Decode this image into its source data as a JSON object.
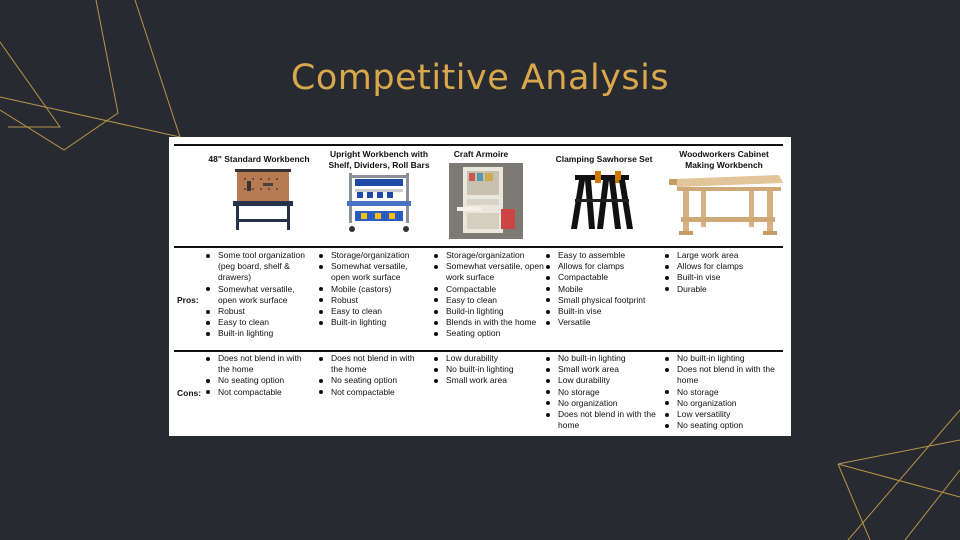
{
  "title": "Competitive Analysis",
  "colors": {
    "background": "#272a31",
    "accent": "#d9a84c"
  },
  "table": {
    "columns": [
      {
        "heading": "48\" Standard Workbench",
        "image": "standard-workbench-image"
      },
      {
        "heading": "Upright Workbench with\nShelf, Dividers, Roll Bars",
        "image": "upright-workbench-image"
      },
      {
        "heading": "Craft Armoire",
        "image": "craft-armoire-image"
      },
      {
        "heading": "Clamping Sawhorse Set",
        "image": "sawhorse-image"
      },
      {
        "heading": "Woodworkers Cabinet\nMaking Workbench",
        "image": "woodworkers-bench-image"
      }
    ],
    "pros_label": "Pros:",
    "cons_label": "Cons:",
    "pros": [
      [
        "Some tool organization (peg board, shelf & drawers)",
        "Somewhat versatile, open work surface",
        "Robust",
        "Easy to clean",
        "Built-in lighting"
      ],
      [
        "Storage/organization",
        "Somewhat versatile, open work surface",
        "Mobile (castors)",
        "Robust",
        "Easy to clean",
        "Built-in lighting"
      ],
      [
        "Storage/organization",
        "Somewhat versatile, open work surface",
        "Compactable",
        "Easy to clean",
        "Build-in lighting",
        "Blends in with the home",
        "Seating option"
      ],
      [
        "Easy to assemble",
        "Allows for clamps",
        "Compactable",
        "Mobile",
        "Small physical footprint",
        "Built-in vise",
        "Versatile"
      ],
      [
        "Large work area",
        "Allows for clamps",
        "Built-in vise",
        "Durable"
      ]
    ],
    "cons": [
      [
        "Does not blend in with the home",
        "No seating option",
        "Not compactable"
      ],
      [
        "Does not blend in with the home",
        "No seating option",
        "Not compactable"
      ],
      [
        "Low durability",
        "No built-in lighting",
        "Small work area"
      ],
      [
        "No built-in lighting",
        "Small work area",
        "Low durability",
        "No storage",
        "No organization",
        "Does not blend in with the home"
      ],
      [
        "No built-in lighting",
        "Does not blend in with the home",
        "No storage",
        "No organization",
        "Low versatility",
        "No seating option"
      ]
    ]
  }
}
